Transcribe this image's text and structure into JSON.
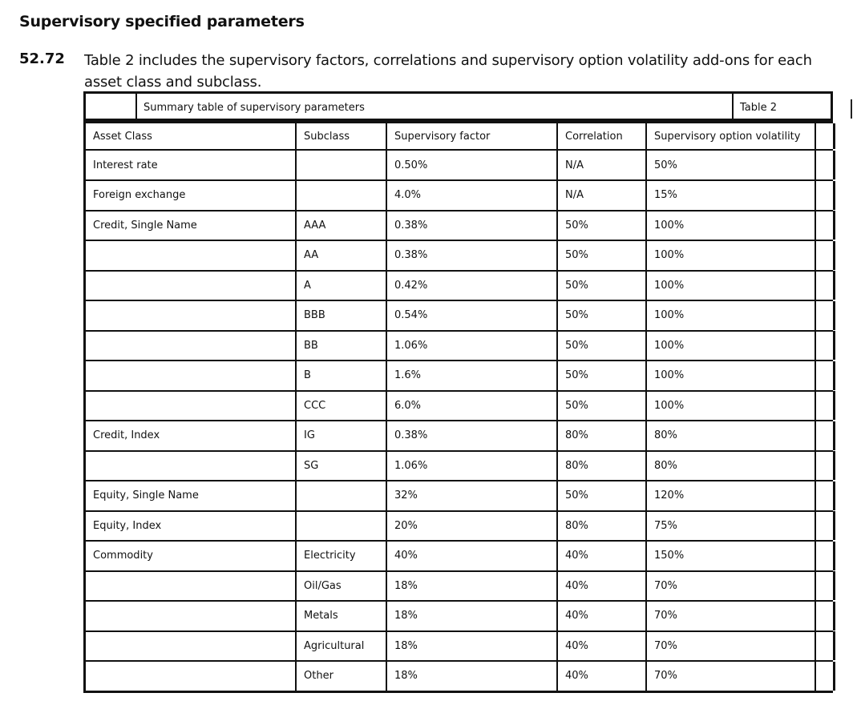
{
  "heading": "Supervisory specified parameters",
  "paragraph": {
    "number": "52.72",
    "text": "Table 2 includes the supervisory factors, correlations and supervisory option volatility add-ons for each asset class and subclass."
  },
  "caption": {
    "title": "Summary table of supervisory parameters",
    "tag": "Table 2"
  },
  "table": {
    "headers": [
      "Asset Class",
      "Subclass",
      "Supervisory factor",
      "Correlation",
      "Supervisory option volatility"
    ],
    "rows": [
      [
        "Interest rate",
        "",
        "0.50%",
        "N/A",
        "50%"
      ],
      [
        "Foreign exchange",
        "",
        "4.0%",
        "N/A",
        "15%"
      ],
      [
        "Credit, Single Name",
        "AAA",
        "0.38%",
        "50%",
        "100%"
      ],
      [
        "",
        "AA",
        "0.38%",
        "50%",
        "100%"
      ],
      [
        "",
        "A",
        "0.42%",
        "50%",
        "100%"
      ],
      [
        "",
        "BBB",
        "0.54%",
        "50%",
        "100%"
      ],
      [
        "",
        "BB",
        "1.06%",
        "50%",
        "100%"
      ],
      [
        "",
        "B",
        "1.6%",
        "50%",
        "100%"
      ],
      [
        "",
        "CCC",
        "6.0%",
        "50%",
        "100%"
      ],
      [
        "Credit, Index",
        "IG",
        "0.38%",
        "80%",
        "80%"
      ],
      [
        "",
        "SG",
        "1.06%",
        "80%",
        "80%"
      ],
      [
        "Equity, Single Name",
        "",
        "32%",
        "50%",
        "120%"
      ],
      [
        "Equity, Index",
        "",
        "20%",
        "80%",
        "75%"
      ],
      [
        "Commodity",
        "Electricity",
        "40%",
        "40%",
        "150%"
      ],
      [
        "",
        "Oil/Gas",
        "18%",
        "40%",
        "70%"
      ],
      [
        "",
        "Metals",
        "18%",
        "40%",
        "70%"
      ],
      [
        "",
        "Agricultural",
        "18%",
        "40%",
        "70%"
      ],
      [
        "",
        "Other",
        "18%",
        "40%",
        "70%"
      ]
    ]
  }
}
